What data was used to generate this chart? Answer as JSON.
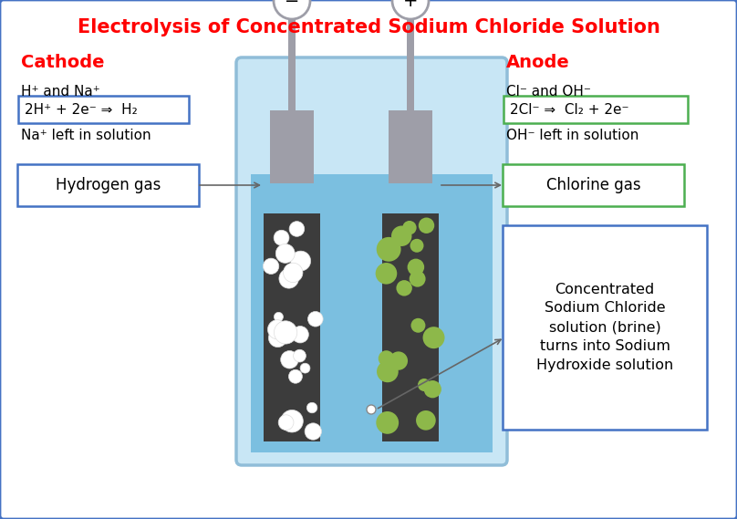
{
  "title": "Electrolysis of Concentrated Sodium Chloride Solution",
  "title_color": "#FF0000",
  "title_fontsize": 15,
  "background_color": "#FFFFFF",
  "border_color": "#4472C4",
  "cathode_label": "Cathode",
  "anode_label": "Anode",
  "label_color": "#FF0000",
  "cathode_ions": "H⁺ and Na⁺",
  "cathode_eq": "2H⁺ + 2e⁻ ⇒  H₂",
  "cathode_remain": "Na⁺ left in solution",
  "anode_ions": "Cl⁻ and OH⁻",
  "anode_eq": "2Cl⁻ ⇒  Cl₂ + 2e⁻",
  "anode_remain": "OH⁻ left in solution",
  "hydrogen_label": "Hydrogen gas",
  "chlorine_label": "Chlorine gas",
  "brine_label": "Concentrated\nSodium Chloride\nsolution (brine)\nturns into Sodium\nHydroxide solution",
  "beaker_outer_color": "#C8E6F5",
  "beaker_rim_color": "#A8D4EA",
  "beaker_outline": "#90BDD8",
  "solution_color": "#7BBFE0",
  "electrode_color": "#3C3C3C",
  "electrode_cap_color": "#9E9EA8",
  "white_bubble_color": "#FFFFFF",
  "green_bubble_color": "#8DB84A",
  "cathode_box_color": "#4472C4",
  "anode_eq_box_color": "#4CAF50",
  "chlorine_box_color": "#4CAF50",
  "brine_box_color": "#4472C4",
  "hydrogen_box_color": "#4472C4",
  "line_color": "#666666"
}
